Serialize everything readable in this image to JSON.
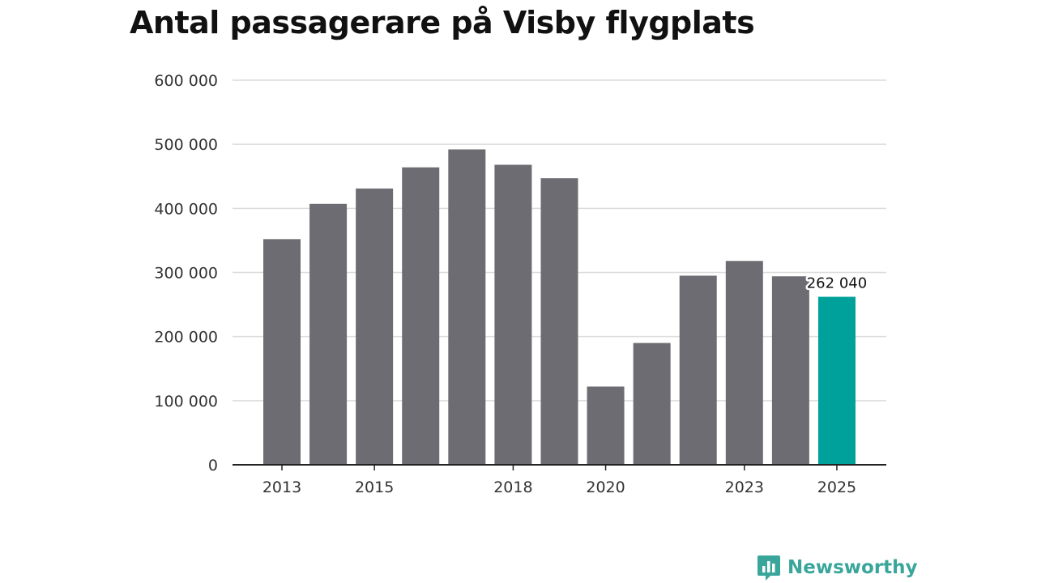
{
  "chart_data": {
    "type": "bar",
    "title": "Antal passagerare på Visby flygplats",
    "xlabel": "",
    "ylabel": "",
    "ylim": [
      0,
      600000
    ],
    "y_ticks": [
      {
        "value": 0,
        "label": "0"
      },
      {
        "value": 100000,
        "label": "100 000"
      },
      {
        "value": 200000,
        "label": "200 000"
      },
      {
        "value": 300000,
        "label": "300 000"
      },
      {
        "value": 400000,
        "label": "400 000"
      },
      {
        "value": 500000,
        "label": "500 000"
      },
      {
        "value": 600000,
        "label": "600 000"
      }
    ],
    "categories": [
      "2013",
      "2014",
      "2015",
      "2016",
      "2017",
      "2018",
      "2019",
      "2020",
      "2021",
      "2022",
      "2023",
      "2024",
      "2025"
    ],
    "x_tick_labels": [
      "2013",
      "2015",
      "2018",
      "2020",
      "2023",
      "2025"
    ],
    "values": [
      352000,
      407000,
      431000,
      464000,
      492000,
      468000,
      447000,
      122000,
      190000,
      295000,
      318000,
      294000,
      262040
    ],
    "highlight": {
      "category": "2025",
      "label": "262 040"
    },
    "grid": true,
    "colors": {
      "bar": "#6d6c72",
      "highlight": "#00a19a",
      "grid": "#dcdcdc",
      "axis": "#222222"
    }
  },
  "brand": {
    "name": "Newsworthy",
    "icon": "newsworthy-logo-icon",
    "color": "#3aa69b"
  }
}
